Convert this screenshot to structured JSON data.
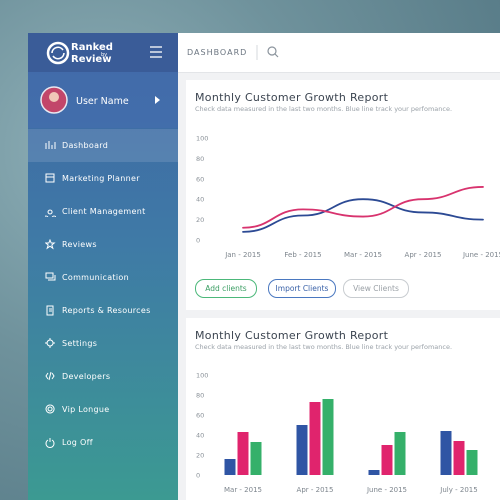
{
  "logo": {
    "line1": "Ranked",
    "line2": "by",
    "line3": "Review"
  },
  "user": {
    "name": "User Name"
  },
  "menu": [
    "Dashboard",
    "Marketing Planner",
    "Client Management",
    "Reviews",
    "Communication",
    "Reports & Resources",
    "Settings",
    "Developers",
    "Vip Longue",
    "Log Off"
  ],
  "topbar": {
    "title": "DASHBOARD"
  },
  "actions": [
    "Add clients",
    "Import Clients",
    "View Clients"
  ],
  "chart_data": [
    {
      "type": "line",
      "title": "Monthly Customer Growth Report",
      "subtitle": "Check data measured in the last two months. Blue line track your perfomance.",
      "categories": [
        "Jan - 2015",
        "Feb - 2015",
        "Mar - 2015",
        "Apr - 2015",
        "June - 2015"
      ],
      "series": [
        {
          "color": "#2c4a94",
          "values": [
            8,
            24,
            40,
            27,
            20
          ]
        },
        {
          "color": "#d8336e",
          "values": [
            12,
            30,
            23,
            40,
            52
          ]
        }
      ],
      "ylim": [
        0,
        100
      ],
      "yticks": [
        0,
        20,
        40,
        60,
        80,
        100
      ]
    },
    {
      "type": "bar",
      "title": "Monthly Customer Growth Report",
      "subtitle": "Check data measured in the last two months. Blue line track your perfomance.",
      "categories": [
        "Mar - 2015",
        "Apr - 2015",
        "June - 2015",
        "July - 2015"
      ],
      "series": [
        {
          "color": "#2f55a4",
          "values": [
            16,
            50,
            5,
            44
          ]
        },
        {
          "color": "#e0246d",
          "values": [
            43,
            73,
            30,
            34
          ]
        },
        {
          "color": "#35b06a",
          "values": [
            33,
            76,
            43,
            25
          ]
        }
      ],
      "ylim": [
        0,
        100
      ],
      "yticks": [
        0,
        20,
        40,
        60,
        80,
        100
      ]
    }
  ]
}
